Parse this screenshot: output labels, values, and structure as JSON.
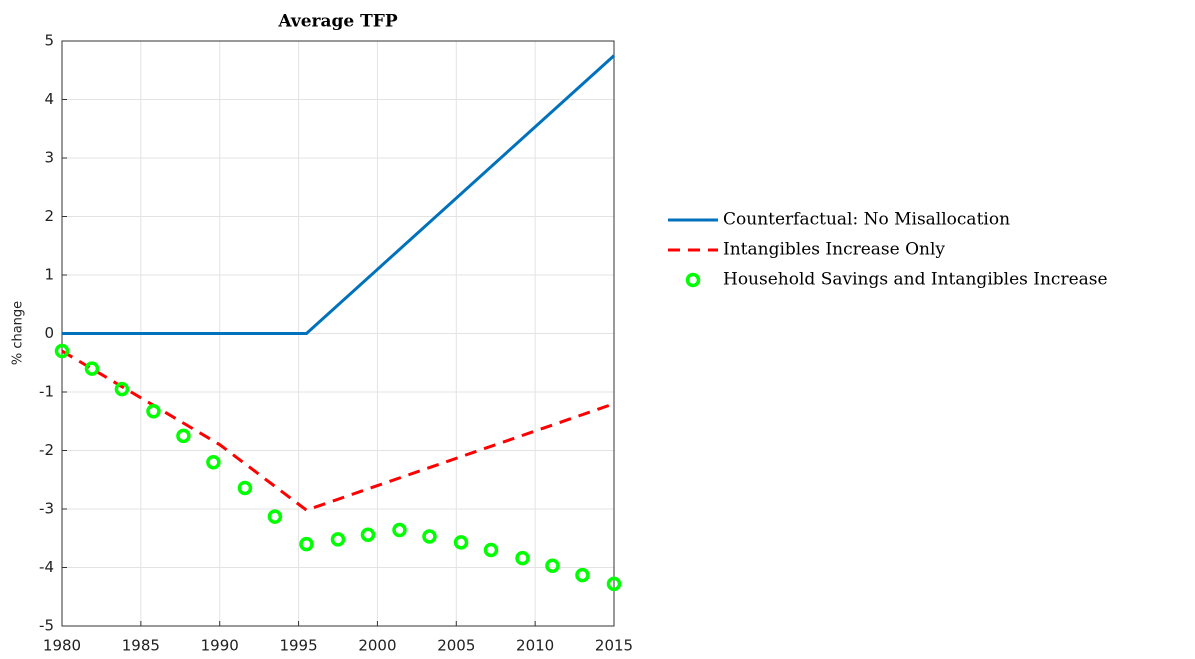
{
  "chart_data": {
    "type": "line",
    "title": "Average TFP",
    "ylabel": "% change",
    "xlim": [
      1980,
      2015
    ],
    "xticks": [
      1980,
      1985,
      1990,
      1995,
      2000,
      2005,
      2010,
      2015
    ],
    "ylim": [
      -5,
      5
    ],
    "yticks": [
      -5,
      -4,
      -3,
      -2,
      -1,
      0,
      1,
      2,
      3,
      4,
      5
    ],
    "grid": true,
    "legend": "east",
    "series": [
      {
        "name": "Counterfactual: No Misallocation",
        "color": "#0072bd",
        "line_style": "solid",
        "x": [
          1980,
          1995.5,
          2015
        ],
        "values": [
          0,
          0,
          4.75
        ]
      },
      {
        "name": "Intangibles Increase Only",
        "color": "#ff0000",
        "line_style": "dashed",
        "x": [
          1980,
          1985,
          1990,
          1995.5,
          2015
        ],
        "values": [
          -0.3,
          -1.1,
          -1.9,
          -3.02,
          -1.2
        ]
      },
      {
        "name": "Household Savings and Intangibles Increase",
        "color": "#00ff00",
        "line_style": "none",
        "marker": "circle",
        "x": [
          1980,
          1981.9,
          1983.8,
          1985.8,
          1987.7,
          1989.6,
          1991.6,
          1993.5,
          1995.5,
          1997.5,
          1999.4,
          2001.4,
          2003.3,
          2005.3,
          2007.2,
          2009.2,
          2011.1,
          2013,
          2015
        ],
        "values": [
          -0.3,
          -0.6,
          -0.95,
          -1.33,
          -1.75,
          -2.2,
          -2.64,
          -3.13,
          -3.6,
          -3.52,
          -3.44,
          -3.36,
          -3.47,
          -3.57,
          -3.7,
          -3.84,
          -3.97,
          -4.13,
          -4.28
        ]
      }
    ]
  }
}
